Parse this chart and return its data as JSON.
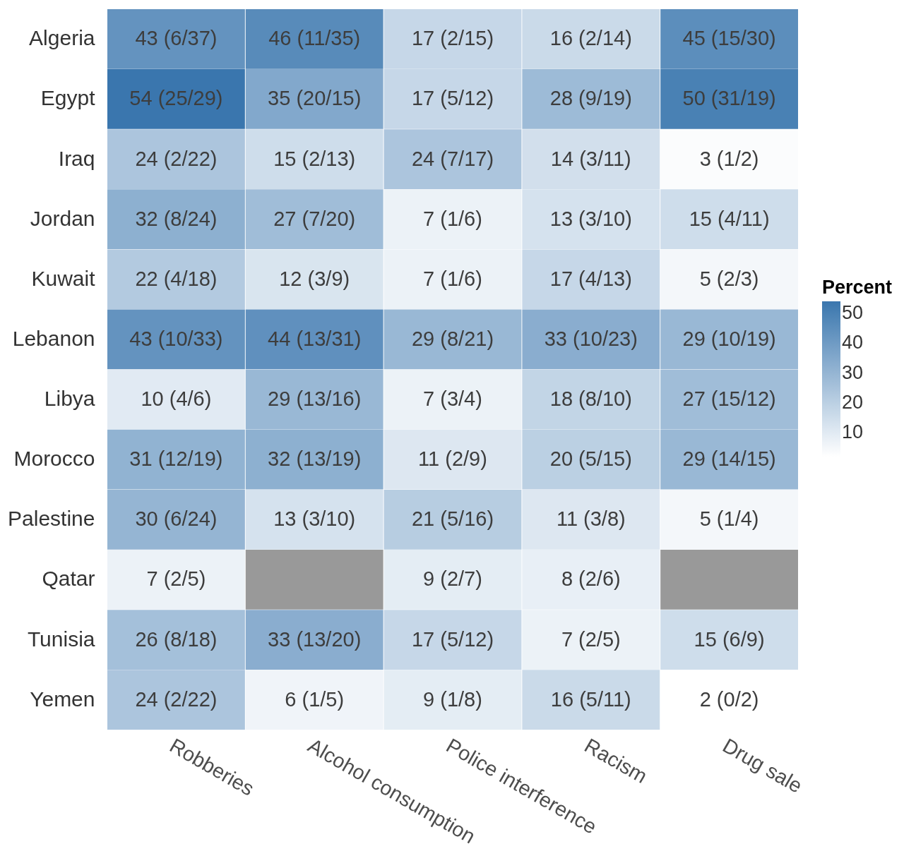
{
  "chart_data": {
    "type": "heatmap",
    "clabel": "Percent",
    "categories": [
      "Robberies",
      "Alcohol consumption",
      "Police interference",
      "Racism",
      "Drug sale"
    ],
    "y_categories": [
      "Algeria",
      "Egypt",
      "Iraq",
      "Jordan",
      "Kuwait",
      "Lebanon",
      "Libya",
      "Morocco",
      "Palestine",
      "Qatar",
      "Tunisia",
      "Yemen"
    ],
    "cells": [
      [
        43,
        46,
        17,
        16,
        45
      ],
      [
        54,
        35,
        17,
        28,
        50
      ],
      [
        24,
        15,
        24,
        14,
        3
      ],
      [
        32,
        27,
        7,
        13,
        15
      ],
      [
        22,
        12,
        7,
        17,
        5
      ],
      [
        43,
        44,
        29,
        33,
        29
      ],
      [
        10,
        29,
        7,
        18,
        27
      ],
      [
        31,
        32,
        11,
        20,
        29
      ],
      [
        30,
        13,
        21,
        11,
        5
      ],
      [
        7,
        null,
        9,
        8,
        null
      ],
      [
        26,
        33,
        17,
        7,
        15
      ],
      [
        24,
        6,
        9,
        16,
        2
      ]
    ],
    "cell_labels": [
      [
        "43 (6/37)",
        "46 (11/35)",
        "17 (2/15)",
        "16 (2/14)",
        "45 (15/30)"
      ],
      [
        "54 (25/29)",
        "35 (20/15)",
        "17 (5/12)",
        "28 (9/19)",
        "50 (31/19)"
      ],
      [
        "24 (2/22)",
        "15 (2/13)",
        "24 (7/17)",
        "14 (3/11)",
        "3 (1/2)"
      ],
      [
        "32 (8/24)",
        "27 (7/20)",
        "7 (1/6)",
        "13 (3/10)",
        "15 (4/11)"
      ],
      [
        "22 (4/18)",
        "12 (3/9)",
        "7 (1/6)",
        "17 (4/13)",
        "5 (2/3)"
      ],
      [
        "43 (10/33)",
        "44 (13/31)",
        "29 (8/21)",
        "33 (10/23)",
        "29 (10/19)"
      ],
      [
        "10 (4/6)",
        "29 (13/16)",
        "7 (3/4)",
        "18 (8/10)",
        "27 (15/12)"
      ],
      [
        "31 (12/19)",
        "32 (13/19)",
        "11 (2/9)",
        "20 (5/15)",
        "29 (14/15)"
      ],
      [
        "30 (6/24)",
        "13 (3/10)",
        "21 (5/16)",
        "11 (3/8)",
        "5 (1/4)"
      ],
      [
        "7 (2/5)",
        null,
        "9 (2/7)",
        "8 (2/6)",
        null
      ],
      [
        "26 (8/18)",
        "33 (13/20)",
        "17 (5/12)",
        "7 (2/5)",
        "15 (6/9)"
      ],
      [
        "24 (2/22)",
        "6 (1/5)",
        "9 (1/8)",
        "16 (5/11)",
        "2 (0/2)"
      ]
    ],
    "clim": [
      2,
      54
    ],
    "cticks": [
      10,
      20,
      30,
      40,
      50
    ]
  }
}
